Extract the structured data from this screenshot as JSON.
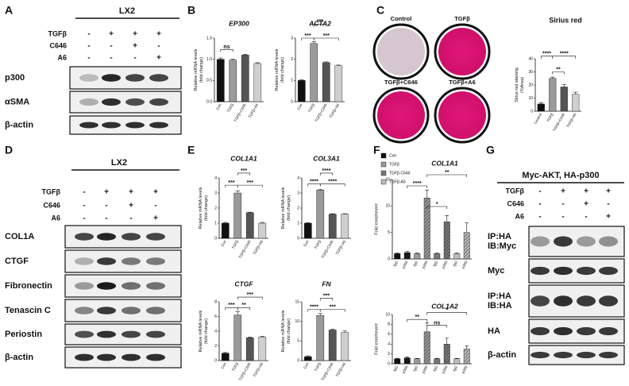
{
  "panel_a": {
    "letter": "A",
    "heading": "LX2",
    "conditions": [
      {
        "label": "TGFβ",
        "signs": [
          "-",
          "+",
          "+",
          "+"
        ]
      },
      {
        "label": "C646",
        "signs": [
          "-",
          "-",
          "+",
          "-"
        ]
      },
      {
        "label": "A6",
        "signs": [
          "-",
          "-",
          "-",
          "+"
        ]
      }
    ],
    "blots": [
      [
        "p300"
      ],
      [
        "αSMA"
      ],
      [
        "β-actin"
      ]
    ]
  },
  "panel_b": {
    "letter": "B"
  },
  "panel_c": {
    "letter": "C",
    "dishes": [
      "Control",
      "TGFβ",
      "TGFβ+C646",
      "TGFβ+A6"
    ]
  },
  "panel_d": {
    "letter": "D",
    "heading": "LX2",
    "conditions": [
      {
        "label": "TGFβ",
        "signs": [
          "-",
          "+",
          "+",
          "+"
        ]
      },
      {
        "label": "C646",
        "signs": [
          "-",
          "-",
          "+",
          "-"
        ]
      },
      {
        "label": "A6",
        "signs": [
          "-",
          "-",
          "-",
          "+"
        ]
      }
    ],
    "blots": [
      [
        "COL1A"
      ],
      [
        "CTGF"
      ],
      [
        "Fibronectin"
      ],
      [
        "Tenascin C"
      ],
      [
        "Periostin"
      ],
      [
        "β-actin"
      ]
    ]
  },
  "panel_e": {
    "letter": "E"
  },
  "panel_f": {
    "letter": "F"
  },
  "panel_g": {
    "letter": "G",
    "heading": "Myc-AKT, HA-p300",
    "conditions": [
      {
        "label": "TGFβ",
        "signs": [
          "-",
          "+",
          "+",
          "+"
        ]
      },
      {
        "label": "C646",
        "signs": [
          "-",
          "-",
          "+",
          "-"
        ]
      },
      {
        "label": "A6",
        "signs": [
          "-",
          "-",
          "-",
          "+"
        ]
      }
    ],
    "blots": [
      [
        "IP:HA",
        "IB:Myc"
      ],
      [
        "Myc"
      ],
      [
        "IP:HA",
        "IB:HA"
      ],
      [
        "HA"
      ],
      [
        "β-actin"
      ]
    ]
  },
  "chart_data": [
    {
      "type": "bar",
      "title": "EP300",
      "y_label": [
        "Relative mRNA levels",
        "(fold change)"
      ],
      "categories": [
        "Con",
        "TGFβ",
        "TGFβ+C646",
        "TGFβ+A6"
      ],
      "values": [
        1.0,
        0.98,
        1.1,
        0.9
      ],
      "errors": [
        0.03,
        0.02,
        0.02,
        0.02
      ],
      "colors": [
        "#111111",
        "#9a9a9a",
        "#555555",
        "#cfcfcf"
      ],
      "ylim": [
        0,
        1.5
      ],
      "yticks": [
        {
          "value": 0,
          "label": "0.0"
        },
        0.5,
        {
          "value": 1,
          "label": "1.0"
        },
        1.5
      ],
      "annotations": [
        "ns"
      ]
    },
    {
      "type": "bar",
      "title": "ACTA2",
      "y_label": [
        "Relative mRNA levels",
        "(fold change)"
      ],
      "categories": [
        "Con",
        "TGFβ",
        "TGFβ+C646",
        "TGFβ+A6"
      ],
      "values": [
        1,
        2.75,
        1.85,
        1.7
      ],
      "errors": [
        0.03,
        0.08,
        0.03,
        0.03
      ],
      "colors": [
        "#111111",
        "#9a9a9a",
        "#555555",
        "#cfcfcf"
      ],
      "ylim": [
        0,
        3
      ],
      "yticks": [
        0,
        1,
        2,
        3
      ],
      "annotations": [
        "***",
        "***",
        "***"
      ]
    },
    {
      "type": "bar",
      "title": "Sirius red",
      "y_label": [
        "Sirius red staining",
        "(%Area)"
      ],
      "categories": [
        "Control",
        "TGFβ",
        "TGFβ+C646",
        "TGFβ+A6"
      ],
      "values": [
        5.5,
        25,
        18.5,
        13
      ],
      "errors": [
        1,
        1,
        2,
        1.5
      ],
      "colors": [
        "#111111",
        "#9a9a9a",
        "#555555",
        "#cfcfcf"
      ],
      "ylim": [
        0,
        40
      ],
      "yticks": [
        0,
        10,
        20,
        30,
        40
      ],
      "annotations": [
        "****",
        "**",
        "****"
      ]
    },
    {
      "type": "bar",
      "title": "COL1A1",
      "y_label": [
        "Relative mRNA levels",
        "(fold change)"
      ],
      "categories": [
        "Con",
        "TGFβ",
        "TGFβ+C646",
        "TGFβ+A6"
      ],
      "values": [
        1,
        3,
        1.7,
        1
      ],
      "errors": [
        0.05,
        0.15,
        0.03,
        0.05
      ],
      "colors": [
        "#111111",
        "#9a9a9a",
        "#555555",
        "#cfcfcf"
      ],
      "ylim": [
        0,
        4
      ],
      "yticks": [
        0,
        1,
        2,
        3,
        4
      ],
      "annotations": [
        "***",
        "***",
        "***"
      ]
    },
    {
      "type": "bar",
      "title": "COL3A1",
      "y_label": [
        "Relative mRNA levels",
        "(fold change)"
      ],
      "categories": [
        "Con",
        "TGFβ",
        "TGFβ+C646",
        "TGFβ+A6"
      ],
      "values": [
        1,
        3.2,
        1.6,
        1.6
      ],
      "errors": [
        0.03,
        0.05,
        0.03,
        0.03
      ],
      "colors": [
        "#111111",
        "#9a9a9a",
        "#555555",
        "#cfcfcf"
      ],
      "ylim": [
        0,
        4
      ],
      "yticks": [
        0,
        1,
        2,
        3,
        4
      ],
      "annotations": [
        "****",
        "****",
        "****"
      ]
    },
    {
      "type": "bar",
      "title": "CTGF",
      "y_label": [
        "Relative mRNA levels",
        "(fold change)"
      ],
      "categories": [
        "Con",
        "TGFβ",
        "TGFβ+C646",
        "TGFβ+A6"
      ],
      "values": [
        1,
        6.2,
        3.1,
        3.2
      ],
      "errors": [
        0.1,
        0.5,
        0.1,
        0.1
      ],
      "colors": [
        "#111111",
        "#9a9a9a",
        "#555555",
        "#cfcfcf"
      ],
      "ylim": [
        0,
        8
      ],
      "yticks": [
        0,
        2,
        4,
        6,
        8
      ],
      "annotations": [
        "***",
        "**",
        "***"
      ]
    },
    {
      "type": "bar",
      "title": "FN",
      "y_label": [
        "Relative mRNA levels",
        "(fold change)"
      ],
      "categories": [
        "Con",
        "TGFβ",
        "TGFβ+C646",
        "TGFβ+A6"
      ],
      "values": [
        1,
        11.5,
        7.8,
        7.2
      ],
      "errors": [
        0.2,
        0.5,
        0.2,
        0.4
      ],
      "colors": [
        "#111111",
        "#9a9a9a",
        "#555555",
        "#cfcfcf"
      ],
      "ylim": [
        0,
        15
      ],
      "yticks": [
        0,
        5,
        10,
        15
      ],
      "annotations": [
        "****",
        "***",
        "***"
      ]
    },
    {
      "type": "bar",
      "title": "COL1A1",
      "y_label": [
        "Fold enrichment"
      ],
      "categories": [
        "IgG",
        "p300"
      ],
      "series": [
        {
          "name": "Con",
          "color": "#111111",
          "values": [
            1,
            1.2
          ],
          "errors": [
            0.1,
            0.2
          ]
        },
        {
          "name": "TGFβ",
          "color": "#9a9a9a",
          "values": [
            1,
            11.5
          ],
          "errors": [
            0.1,
            1.5
          ]
        },
        {
          "name": "TGFβ-C646",
          "color": "#777777",
          "values": [
            1,
            7
          ],
          "errors": [
            0.1,
            1.2
          ]
        },
        {
          "name": "TGFβ-A6",
          "color": "#bbbbbb",
          "values": [
            1,
            5
          ],
          "errors": [
            0.1,
            1.8
          ]
        }
      ],
      "ylim": [
        0,
        15
      ],
      "yticks": [
        0,
        5,
        10,
        15
      ],
      "annotations": [
        "****",
        "*",
        "**"
      ]
    },
    {
      "type": "bar",
      "title": "COL1A2",
      "y_label": [
        "Fold enrichment"
      ],
      "categories": [
        "IgG",
        "p300"
      ],
      "series": [
        {
          "color": "#111111",
          "values": [
            1,
            1.2
          ],
          "errors": [
            0.1,
            0.2
          ]
        },
        {
          "color": "#9a9a9a",
          "values": [
            1,
            6.5
          ],
          "errors": [
            0.1,
            1.8
          ]
        },
        {
          "color": "#777777",
          "values": [
            1,
            4
          ],
          "errors": [
            0.1,
            1.2
          ]
        },
        {
          "color": "#bbbbbb",
          "values": [
            1,
            3
          ],
          "errors": [
            0.1,
            0.6
          ]
        }
      ],
      "ylim": [
        0,
        10
      ],
      "yticks": [
        0,
        2,
        4,
        6,
        8,
        10
      ],
      "annotations": [
        "**",
        "ns",
        "*"
      ]
    }
  ]
}
